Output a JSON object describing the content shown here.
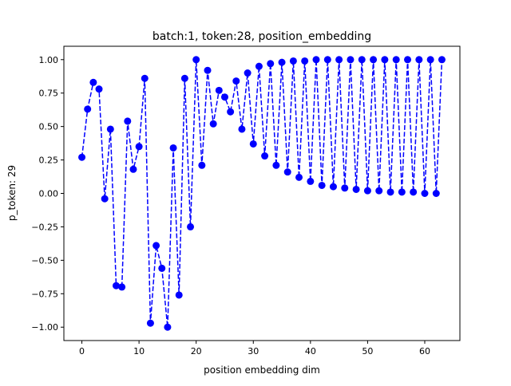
{
  "chart_data": {
    "type": "line",
    "title": "batch:1, token:28, position_embedding",
    "xlabel": "position embedding dim",
    "ylabel": "p_token: 29",
    "xlim": [
      -3.15,
      66.15
    ],
    "ylim": [
      -1.1,
      1.1
    ],
    "xticks": [
      0,
      10,
      20,
      30,
      40,
      50,
      60
    ],
    "yticks": [
      -1.0,
      -0.75,
      -0.5,
      -0.25,
      0.0,
      0.25,
      0.5,
      0.75,
      1.0
    ],
    "ytick_labels": [
      "−1.00",
      "−0.75",
      "−0.50",
      "−0.25",
      "0.00",
      "0.25",
      "0.50",
      "0.75",
      "1.00"
    ],
    "grid": false,
    "series": [
      {
        "color": "#0000ff",
        "line_style": "dashed",
        "marker": "circle",
        "x": [
          0,
          1,
          2,
          3,
          4,
          5,
          6,
          7,
          8,
          9,
          10,
          11,
          12,
          13,
          14,
          15,
          16,
          17,
          18,
          19,
          20,
          21,
          22,
          23,
          24,
          25,
          26,
          27,
          28,
          29,
          30,
          31,
          32,
          33,
          34,
          35,
          36,
          37,
          38,
          39,
          40,
          41,
          42,
          43,
          44,
          45,
          46,
          47,
          48,
          49,
          50,
          51,
          52,
          53,
          54,
          55,
          56,
          57,
          58,
          59,
          60,
          61,
          62,
          63
        ],
        "y": [
          0.27,
          0.63,
          0.83,
          0.78,
          -0.04,
          0.48,
          -0.69,
          -0.7,
          0.54,
          0.18,
          0.35,
          0.86,
          -0.97,
          -0.39,
          -0.56,
          -1.0,
          0.34,
          -0.76,
          0.86,
          -0.25,
          1.0,
          0.21,
          0.92,
          0.52,
          0.77,
          0.72,
          0.61,
          0.84,
          0.48,
          0.9,
          0.37,
          0.95,
          0.28,
          0.97,
          0.21,
          0.98,
          0.16,
          0.99,
          0.12,
          0.99,
          0.09,
          1.0,
          0.06,
          1.0,
          0.05,
          1.0,
          0.04,
          1.0,
          0.03,
          1.0,
          0.02,
          1.0,
          0.02,
          1.0,
          0.01,
          1.0,
          0.01,
          1.0,
          0.01,
          1.0,
          0.0,
          1.0,
          0.0,
          1.0
        ]
      }
    ]
  }
}
